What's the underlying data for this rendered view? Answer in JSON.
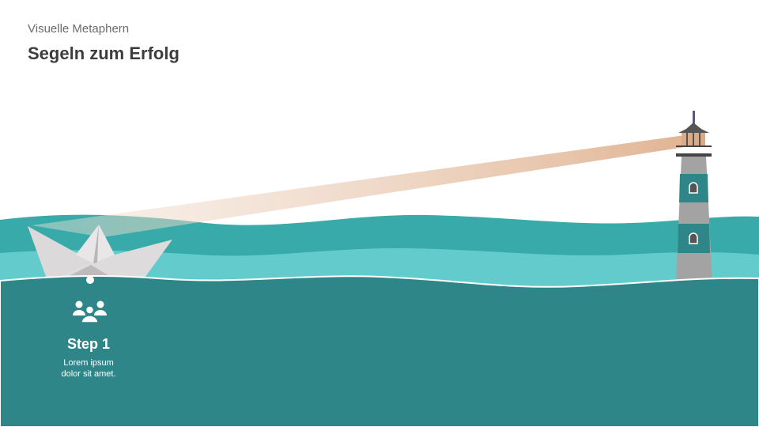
{
  "header": {
    "subtitle": "Visuelle Metaphern",
    "title": "Segeln zum Erfolg"
  },
  "step": {
    "icon": "people-group-icon",
    "title": "Step 1",
    "text_line1": "Lorem ipsum",
    "text_line2": "dolor sit amet."
  },
  "colors": {
    "wave_back": "#38aaa9",
    "wave_mid": "#63cbcb",
    "wave_front": "#2f8689",
    "beam": "#dca882",
    "tower": "#a3a3a3",
    "band": "#2f8689"
  }
}
